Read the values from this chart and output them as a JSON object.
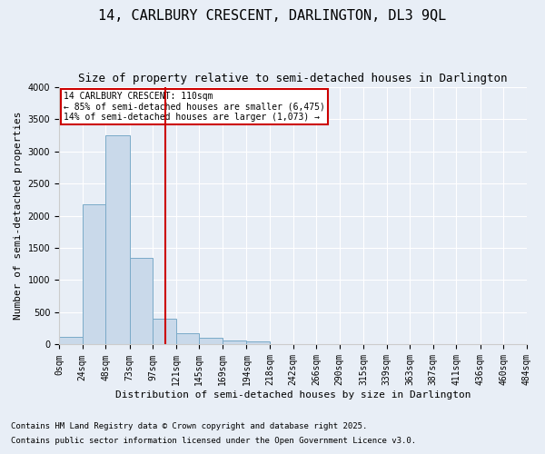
{
  "title1": "14, CARLBURY CRESCENT, DARLINGTON, DL3 9QL",
  "title2": "Size of property relative to semi-detached houses in Darlington",
  "xlabel": "Distribution of semi-detached houses by size in Darlington",
  "ylabel": "Number of semi-detached properties",
  "annotation_title": "14 CARLBURY CRESCENT: 110sqm",
  "annotation_line1": "← 85% of semi-detached houses are smaller (6,475)",
  "annotation_line2": "14% of semi-detached houses are larger (1,073) →",
  "property_size": 110,
  "footnote1": "Contains HM Land Registry data © Crown copyright and database right 2025.",
  "footnote2": "Contains public sector information licensed under the Open Government Licence v3.0.",
  "bin_edges": [
    0,
    24,
    48,
    73,
    97,
    121,
    145,
    169,
    194,
    218,
    242,
    266,
    290,
    315,
    339,
    363,
    387,
    411,
    436,
    460,
    484
  ],
  "bin_labels": [
    "0sqm",
    "24sqm",
    "48sqm",
    "73sqm",
    "97sqm",
    "121sqm",
    "145sqm",
    "169sqm",
    "194sqm",
    "218sqm",
    "242sqm",
    "266sqm",
    "290sqm",
    "315sqm",
    "339sqm",
    "363sqm",
    "387sqm",
    "411sqm",
    "436sqm",
    "460sqm",
    "484sqm"
  ],
  "bar_heights": [
    120,
    2175,
    3250,
    1350,
    400,
    170,
    100,
    65,
    50,
    0,
    0,
    0,
    0,
    0,
    0,
    0,
    0,
    0,
    0,
    0
  ],
  "bar_color": "#c9d9ea",
  "bar_edge_color": "#7aaac8",
  "vline_color": "#cc0000",
  "vline_x": 110,
  "annotation_box_color": "#cc0000",
  "ylim": [
    0,
    4000
  ],
  "yticks": [
    0,
    500,
    1000,
    1500,
    2000,
    2500,
    3000,
    3500,
    4000
  ],
  "bg_color": "#e8eef6",
  "plot_bg_color": "#e8eef6",
  "title_fontsize": 11,
  "subtitle_fontsize": 9,
  "tick_fontsize": 7,
  "label_fontsize": 8,
  "footnote_fontsize": 6.5
}
